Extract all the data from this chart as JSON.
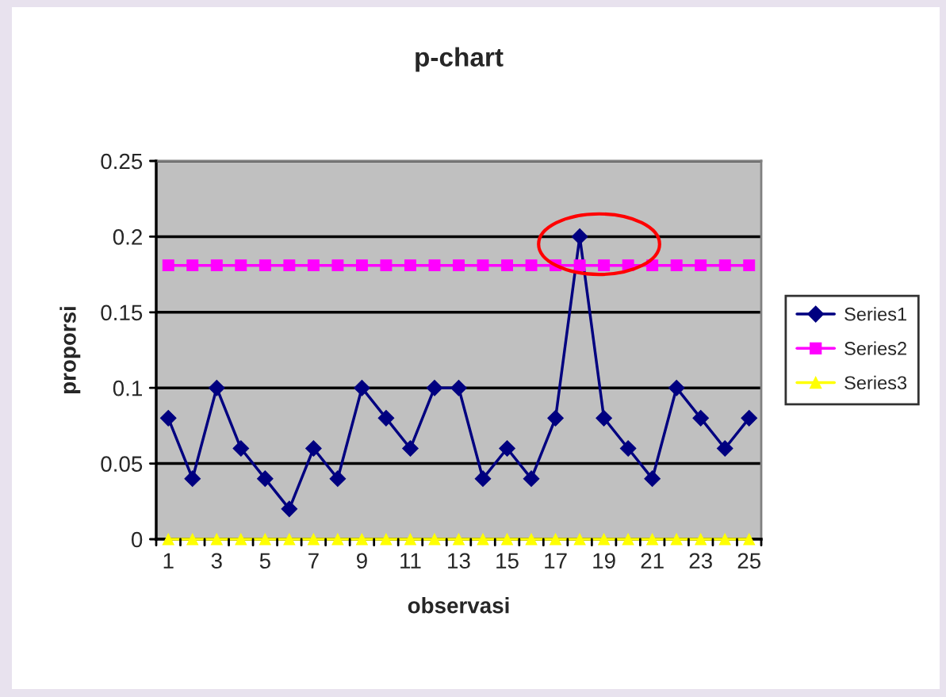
{
  "chart_data": {
    "type": "line",
    "title": "p-chart",
    "xlabel": "observasi",
    "ylabel": "proporsi",
    "categories": [
      "1",
      null,
      "3",
      null,
      "5",
      null,
      "7",
      null,
      "9",
      null,
      "11",
      null,
      "13",
      null,
      "15",
      null,
      "17",
      null,
      "19",
      null,
      "21",
      null,
      "23",
      null,
      "25"
    ],
    "series": [
      {
        "name": "Series1",
        "color": "#000080",
        "marker": "diamond",
        "values": [
          0.08,
          0.04,
          0.1,
          0.06,
          0.04,
          0.02,
          0.06,
          0.04,
          0.1,
          0.08,
          0.06,
          0.1,
          0.1,
          0.04,
          0.06,
          0.04,
          0.08,
          0.2,
          0.08,
          0.06,
          0.04,
          0.1,
          0.08,
          0.06,
          0.08
        ]
      },
      {
        "name": "Series2",
        "color": "#ff00ff",
        "marker": "square",
        "values": [
          0.181,
          0.181,
          0.181,
          0.181,
          0.181,
          0.181,
          0.181,
          0.181,
          0.181,
          0.181,
          0.181,
          0.181,
          0.181,
          0.181,
          0.181,
          0.181,
          0.181,
          0.181,
          0.181,
          0.181,
          0.181,
          0.181,
          0.181,
          0.181,
          0.181
        ]
      },
      {
        "name": "Series3",
        "color": "#ffff00",
        "marker": "triangle",
        "values": [
          0,
          0,
          0,
          0,
          0,
          0,
          0,
          0,
          0,
          0,
          0,
          0,
          0,
          0,
          0,
          0,
          0,
          0,
          0,
          0,
          0,
          0,
          0,
          0,
          0
        ]
      }
    ],
    "ylim": [
      0,
      0.25
    ],
    "yticks": [
      0,
      0.05,
      0.1,
      0.15,
      0.2,
      0.25
    ],
    "grid": "y",
    "legend": "right"
  }
}
